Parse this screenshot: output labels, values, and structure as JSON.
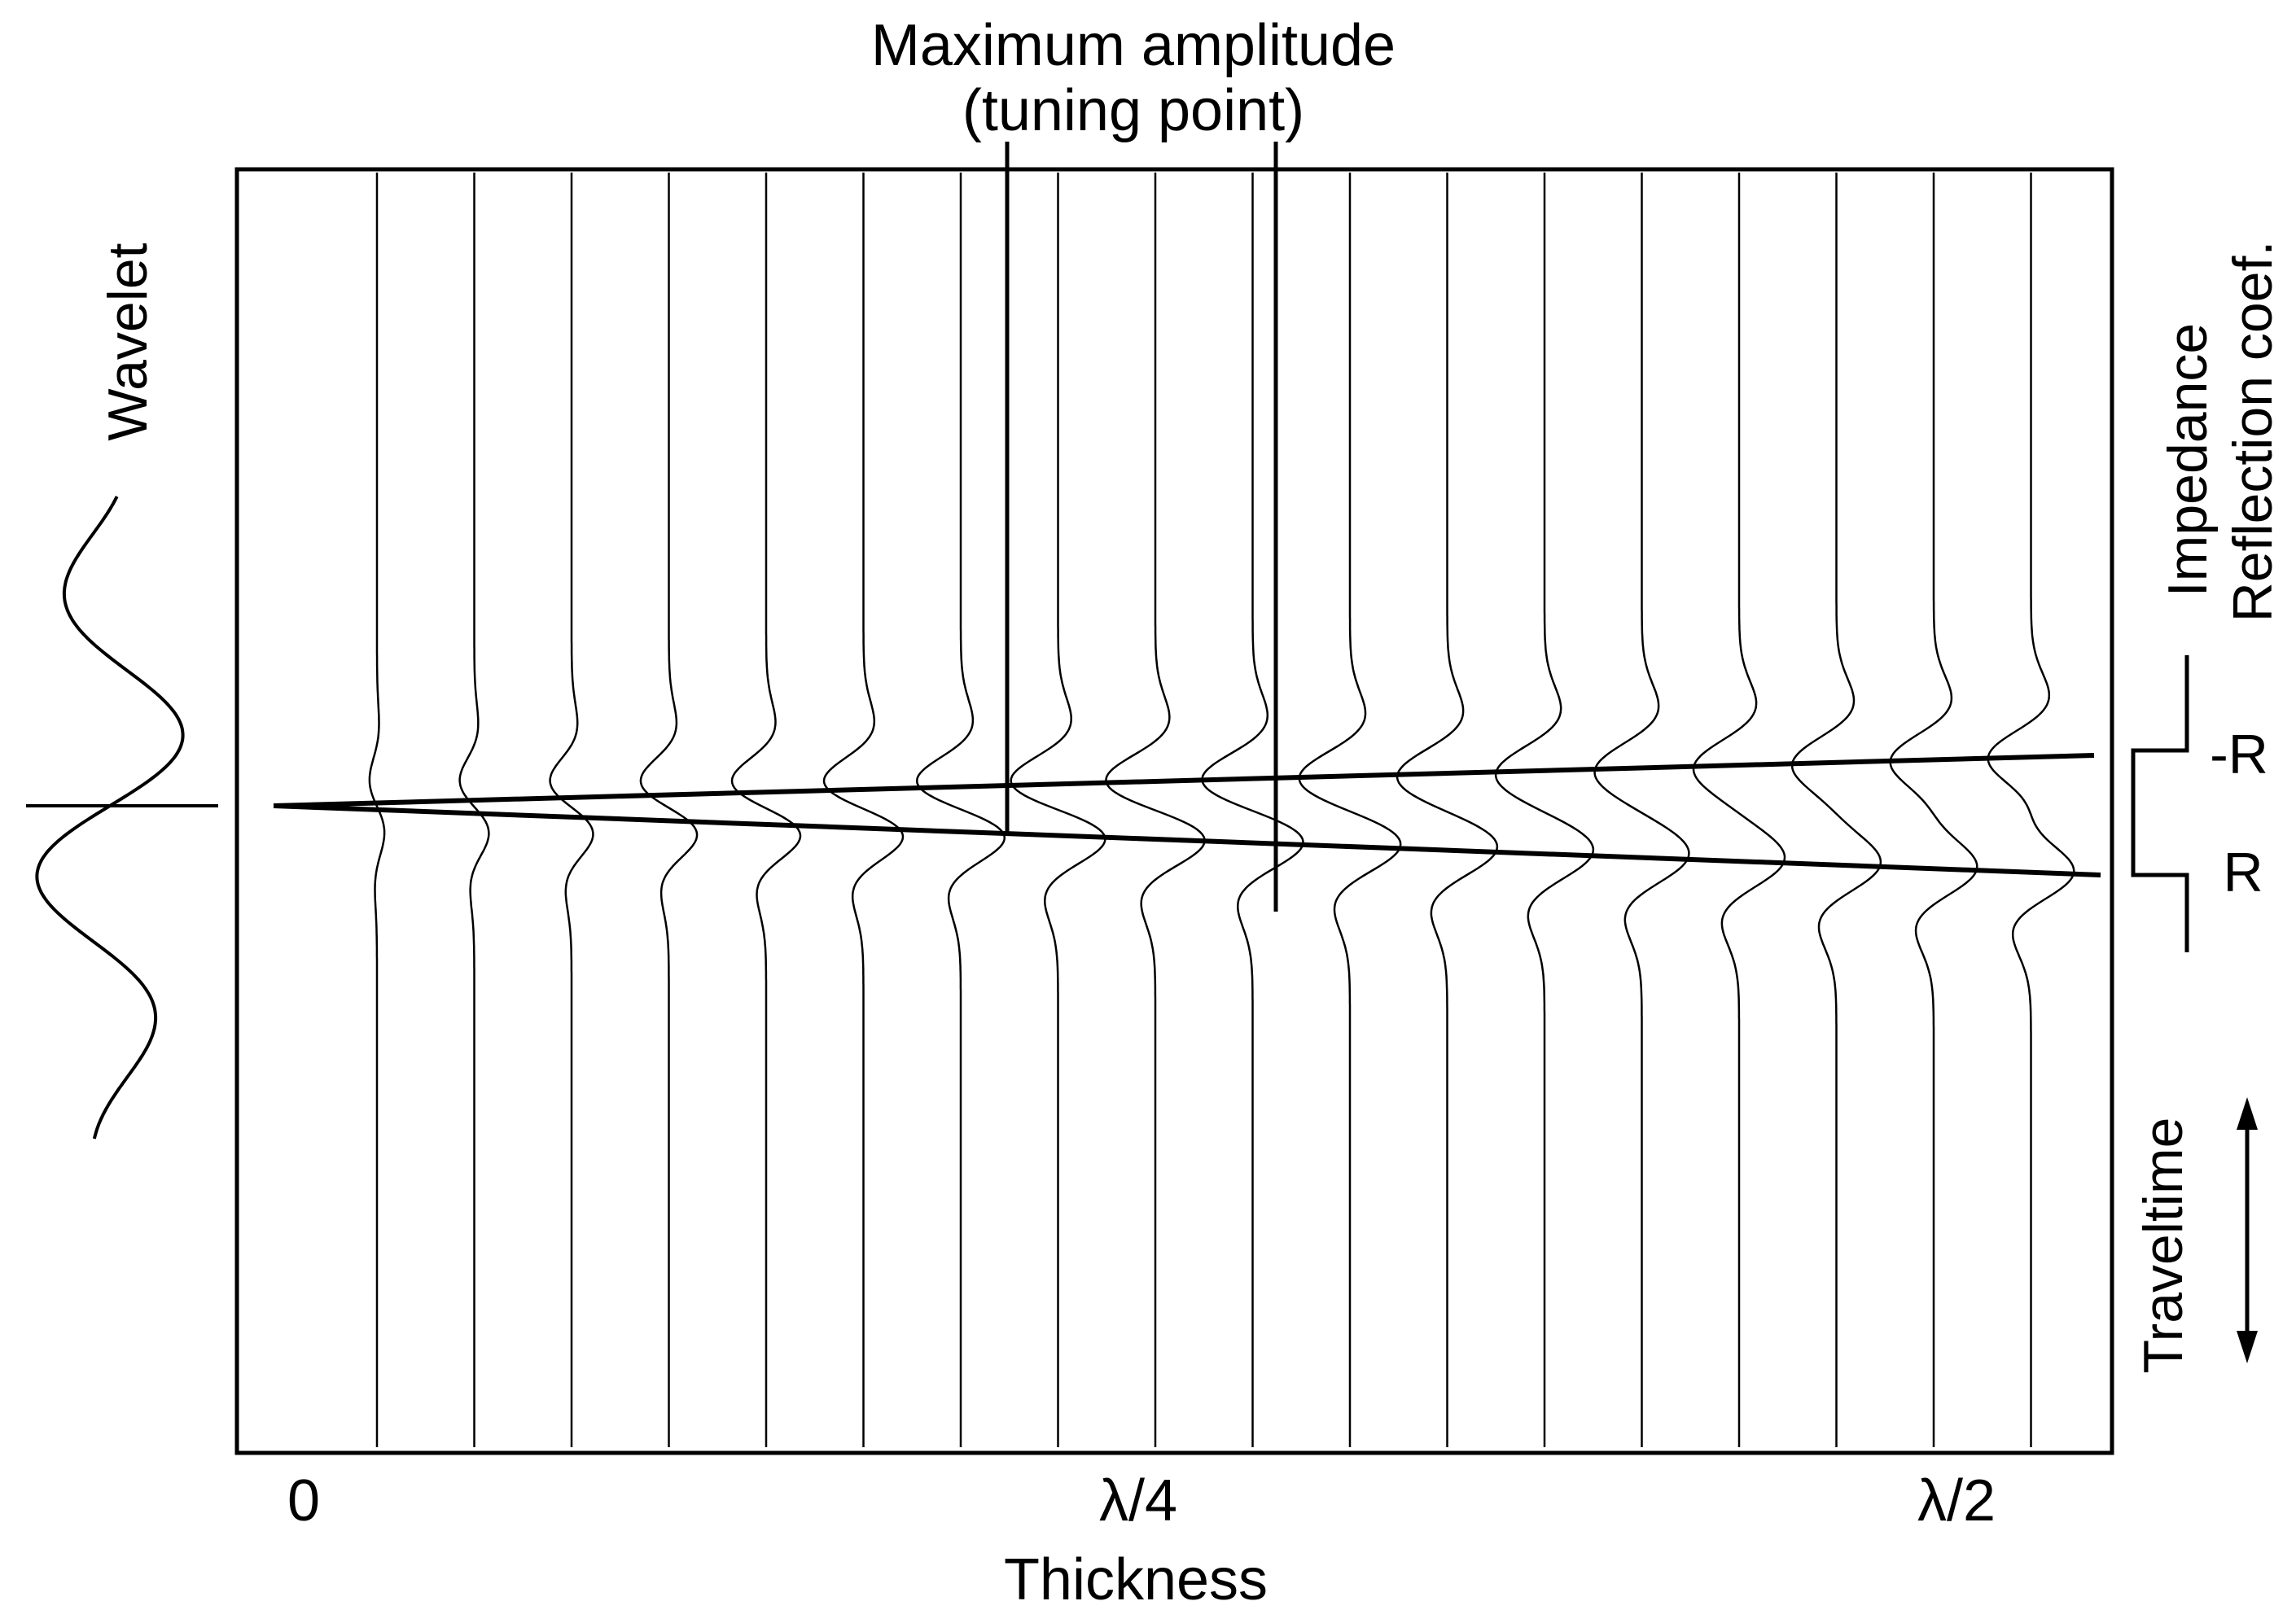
{
  "title": {
    "line1": "Maximum amplitude",
    "line2": "(tuning point)"
  },
  "wavelet_label": "Wavelet",
  "impedance_label": "Impedance",
  "reflection_label": "Reflection coef.",
  "neg_r_label": "-R",
  "pos_r_label": "R",
  "traveltime_label": "Traveltime",
  "x_axis": {
    "label": "Thickness",
    "ticks": [
      "0",
      "λ/4",
      "λ/2"
    ]
  },
  "colors": {
    "ink": "#000000",
    "background": "#ffffff"
  }
}
